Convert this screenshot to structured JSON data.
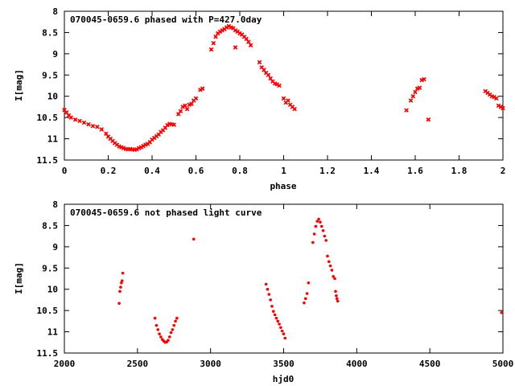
{
  "chart_data": [
    {
      "type": "scatter",
      "title": "070045-0659.6 phased with P=427.0day",
      "xlabel": "phase",
      "ylabel": "I[mag]",
      "xlim": [
        0,
        2
      ],
      "ylim": [
        11.5,
        8
      ],
      "y_inverted": true,
      "x_ticks": [
        "0",
        "0.2",
        "0.4",
        "0.6",
        "0.8",
        "1",
        "1.2",
        "1.4",
        "1.6",
        "1.8",
        "2"
      ],
      "y_ticks": [
        "8",
        "8.5",
        "9",
        "9.5",
        "10",
        "10.5",
        "11",
        "11.5"
      ],
      "grid": false,
      "marker_color": "#ff0000",
      "marker_style": "cross",
      "series": [
        {
          "values": [
            [
              0.0,
              10.32
            ],
            [
              0.01,
              10.38
            ],
            [
              0.02,
              10.45
            ],
            [
              0.03,
              10.5
            ],
            [
              0.05,
              10.55
            ],
            [
              0.07,
              10.58
            ],
            [
              0.09,
              10.62
            ],
            [
              0.11,
              10.66
            ],
            [
              0.13,
              10.7
            ],
            [
              0.15,
              10.72
            ],
            [
              0.17,
              10.78
            ],
            [
              0.19,
              10.88
            ],
            [
              0.2,
              10.95
            ],
            [
              0.21,
              11.0
            ],
            [
              0.22,
              11.05
            ],
            [
              0.23,
              11.1
            ],
            [
              0.24,
              11.14
            ],
            [
              0.25,
              11.18
            ],
            [
              0.26,
              11.2
            ],
            [
              0.27,
              11.22
            ],
            [
              0.28,
              11.24
            ],
            [
              0.29,
              11.25
            ],
            [
              0.3,
              11.24
            ],
            [
              0.31,
              11.25
            ],
            [
              0.32,
              11.26
            ],
            [
              0.33,
              11.25
            ],
            [
              0.34,
              11.22
            ],
            [
              0.35,
              11.2
            ],
            [
              0.36,
              11.17
            ],
            [
              0.37,
              11.14
            ],
            [
              0.38,
              11.12
            ],
            [
              0.39,
              11.08
            ],
            [
              0.4,
              11.02
            ],
            [
              0.41,
              10.98
            ],
            [
              0.42,
              10.94
            ],
            [
              0.43,
              10.9
            ],
            [
              0.44,
              10.84
            ],
            [
              0.45,
              10.8
            ],
            [
              0.46,
              10.74
            ],
            [
              0.47,
              10.68
            ],
            [
              0.48,
              10.65
            ],
            [
              0.49,
              10.66
            ],
            [
              0.5,
              10.67
            ],
            [
              0.52,
              10.42
            ],
            [
              0.53,
              10.35
            ],
            [
              0.54,
              10.25
            ],
            [
              0.55,
              10.22
            ],
            [
              0.56,
              10.3
            ],
            [
              0.57,
              10.2
            ],
            [
              0.58,
              10.18
            ],
            [
              0.59,
              10.1
            ],
            [
              0.6,
              10.05
            ],
            [
              0.62,
              9.85
            ],
            [
              0.63,
              9.82
            ],
            [
              0.67,
              8.9
            ],
            [
              0.68,
              8.75
            ],
            [
              0.69,
              8.6
            ],
            [
              0.7,
              8.52
            ],
            [
              0.71,
              8.48
            ],
            [
              0.72,
              8.45
            ],
            [
              0.73,
              8.42
            ],
            [
              0.74,
              8.38
            ],
            [
              0.75,
              8.35
            ],
            [
              0.76,
              8.38
            ],
            [
              0.77,
              8.4
            ],
            [
              0.78,
              8.45
            ],
            [
              0.79,
              8.48
            ],
            [
              0.8,
              8.52
            ],
            [
              0.81,
              8.55
            ],
            [
              0.82,
              8.6
            ],
            [
              0.83,
              8.65
            ],
            [
              0.84,
              8.72
            ],
            [
              0.85,
              8.8
            ],
            [
              0.78,
              8.85
            ],
            [
              0.89,
              9.2
            ],
            [
              0.9,
              9.32
            ],
            [
              0.91,
              9.38
            ],
            [
              0.92,
              9.45
            ],
            [
              0.93,
              9.5
            ],
            [
              0.94,
              9.58
            ],
            [
              0.95,
              9.65
            ],
            [
              0.96,
              9.7
            ],
            [
              0.97,
              9.72
            ],
            [
              0.98,
              9.75
            ],
            [
              1.0,
              10.05
            ],
            [
              1.01,
              10.15
            ],
            [
              1.02,
              10.1
            ],
            [
              1.03,
              10.2
            ],
            [
              1.04,
              10.25
            ],
            [
              1.05,
              10.3
            ],
            [
              1.56,
              10.33
            ],
            [
              1.58,
              10.1
            ],
            [
              1.59,
              10.0
            ],
            [
              1.6,
              9.9
            ],
            [
              1.61,
              9.82
            ],
            [
              1.62,
              9.8
            ],
            [
              1.63,
              9.62
            ],
            [
              1.64,
              9.6
            ],
            [
              1.66,
              10.55
            ],
            [
              1.92,
              9.88
            ],
            [
              1.93,
              9.92
            ],
            [
              1.94,
              9.96
            ],
            [
              1.95,
              10.0
            ],
            [
              1.96,
              10.02
            ],
            [
              1.97,
              10.05
            ],
            [
              1.98,
              10.22
            ],
            [
              1.99,
              10.25
            ],
            [
              2.0,
              10.28
            ]
          ]
        }
      ]
    },
    {
      "type": "scatter",
      "title": "070045-0659.6 not phased light curve",
      "xlabel": "hjd0",
      "ylabel": "I[mag]",
      "xlim": [
        2000,
        5000
      ],
      "ylim": [
        11.5,
        8
      ],
      "y_inverted": true,
      "x_ticks": [
        "2000",
        "2500",
        "3000",
        "3500",
        "4000",
        "4500",
        "5000"
      ],
      "y_ticks": [
        "8",
        "8.5",
        "9",
        "9.5",
        "10",
        "10.5",
        "11",
        "11.5"
      ],
      "grid": false,
      "marker_color": "#ff0000",
      "marker_style": "dot",
      "series": [
        {
          "values": [
            [
              2375,
              10.33
            ],
            [
              2380,
              10.05
            ],
            [
              2385,
              9.95
            ],
            [
              2390,
              9.85
            ],
            [
              2395,
              9.8
            ],
            [
              2400,
              9.62
            ],
            [
              2620,
              10.68
            ],
            [
              2630,
              10.85
            ],
            [
              2640,
              10.95
            ],
            [
              2650,
              11.05
            ],
            [
              2660,
              11.12
            ],
            [
              2670,
              11.18
            ],
            [
              2680,
              11.22
            ],
            [
              2690,
              11.25
            ],
            [
              2700,
              11.24
            ],
            [
              2710,
              11.2
            ],
            [
              2720,
              11.12
            ],
            [
              2730,
              11.02
            ],
            [
              2740,
              10.95
            ],
            [
              2750,
              10.85
            ],
            [
              2760,
              10.75
            ],
            [
              2770,
              10.68
            ],
            [
              2885,
              8.82
            ],
            [
              3380,
              9.88
            ],
            [
              3390,
              10.0
            ],
            [
              3400,
              10.12
            ],
            [
              3410,
              10.25
            ],
            [
              3420,
              10.4
            ],
            [
              3430,
              10.52
            ],
            [
              3440,
              10.6
            ],
            [
              3450,
              10.68
            ],
            [
              3460,
              10.75
            ],
            [
              3470,
              10.82
            ],
            [
              3480,
              10.9
            ],
            [
              3490,
              10.98
            ],
            [
              3500,
              11.05
            ],
            [
              3510,
              11.15
            ],
            [
              3640,
              10.32
            ],
            [
              3650,
              10.22
            ],
            [
              3660,
              10.1
            ],
            [
              3670,
              9.85
            ],
            [
              3700,
              8.9
            ],
            [
              3710,
              8.7
            ],
            [
              3720,
              8.52
            ],
            [
              3730,
              8.4
            ],
            [
              3740,
              8.35
            ],
            [
              3750,
              8.42
            ],
            [
              3760,
              8.52
            ],
            [
              3770,
              8.62
            ],
            [
              3780,
              8.75
            ],
            [
              3790,
              8.85
            ],
            [
              3800,
              9.22
            ],
            [
              3810,
              9.35
            ],
            [
              3820,
              9.45
            ],
            [
              3830,
              9.55
            ],
            [
              3840,
              9.7
            ],
            [
              3850,
              9.75
            ],
            [
              3855,
              10.05
            ],
            [
              3860,
              10.15
            ],
            [
              3865,
              10.22
            ],
            [
              3870,
              10.28
            ],
            [
              4990,
              10.55
            ]
          ]
        }
      ]
    }
  ]
}
